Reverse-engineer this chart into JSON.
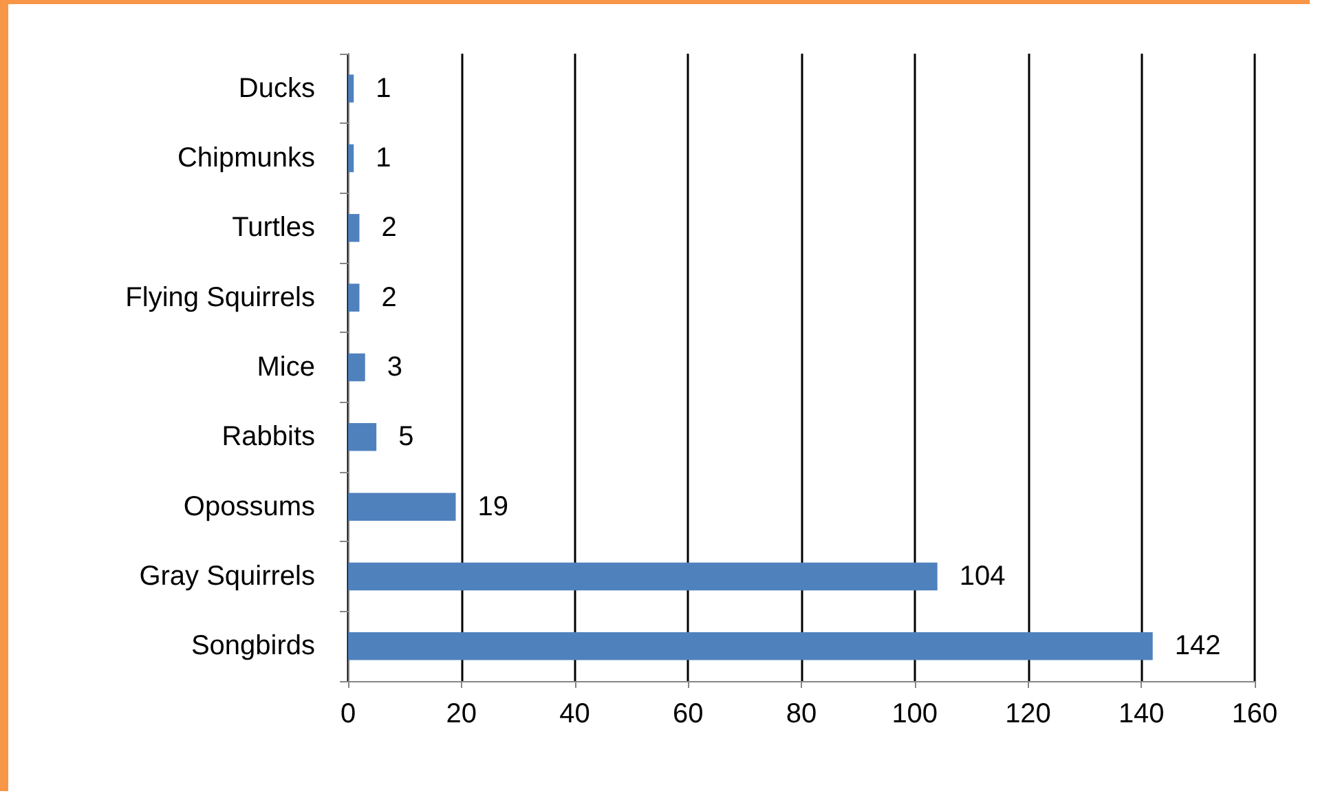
{
  "chart_data": {
    "type": "bar",
    "orientation": "horizontal",
    "categories": [
      "Ducks",
      "Chipmunks",
      "Turtles",
      "Flying Squirrels",
      "Mice",
      "Rabbits",
      "Opossums",
      "Gray Squirrels",
      "Songbirds"
    ],
    "values": [
      1,
      1,
      2,
      2,
      3,
      5,
      19,
      104,
      142
    ],
    "color": "#4f81bd",
    "xlim": [
      0,
      160
    ],
    "xticks": [
      0,
      20,
      40,
      60,
      80,
      100,
      120,
      140,
      160
    ],
    "grid": "x",
    "data_labels": true
  }
}
